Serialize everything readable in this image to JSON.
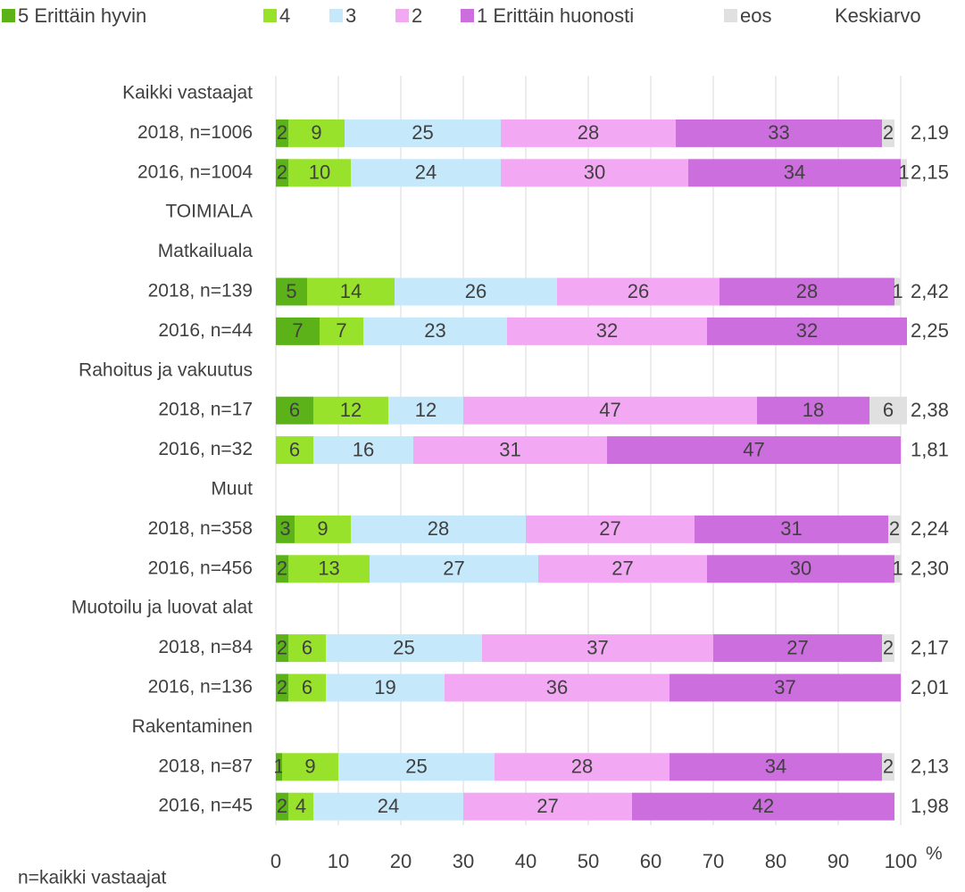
{
  "chart_data": {
    "type": "stacked-bar-horizontal",
    "categories": [
      "Kaikki vastaajat",
      "2018, n=1006",
      "2016, n=1004",
      "TOIMIALA",
      "Matkailuala",
      "2018, n=139",
      "2016, n=44",
      "Rahoitus ja vakuutus",
      "2018, n=17",
      "2016, n=32",
      "Muut",
      "2018, n=358",
      "2016, n=456",
      "Muotoilu ja luovat alat",
      "2018, n=84",
      "2016, n=136",
      "Rakentaminen",
      "2018, n=87",
      "2016, n=45"
    ],
    "series": [
      {
        "name": "5 Erittäin hyvin",
        "color": "#5cb319",
        "values": [
          null,
          2,
          2,
          null,
          null,
          5,
          7,
          null,
          6,
          null,
          null,
          3,
          2,
          null,
          2,
          2,
          null,
          1,
          2
        ]
      },
      {
        "name": "4",
        "color": "#99e22b",
        "values": [
          null,
          9,
          10,
          null,
          null,
          14,
          7,
          null,
          12,
          6,
          null,
          9,
          13,
          null,
          6,
          6,
          null,
          9,
          4
        ]
      },
      {
        "name": "3",
        "color": "#c5e8fa",
        "values": [
          null,
          25,
          24,
          null,
          null,
          26,
          23,
          null,
          12,
          16,
          null,
          28,
          27,
          null,
          25,
          19,
          null,
          25,
          24
        ]
      },
      {
        "name": "2",
        "color": "#f3a8f3",
        "values": [
          null,
          28,
          30,
          null,
          null,
          26,
          32,
          null,
          47,
          31,
          null,
          27,
          27,
          null,
          37,
          36,
          null,
          28,
          27
        ]
      },
      {
        "name": "1 Erittäin huonosti",
        "color": "#cc6ede",
        "values": [
          null,
          33,
          34,
          null,
          null,
          28,
          32,
          null,
          18,
          47,
          null,
          31,
          30,
          null,
          27,
          37,
          null,
          34,
          42
        ]
      },
      {
        "name": "eos",
        "color": "#e0e0e0",
        "values": [
          null,
          2,
          1,
          null,
          null,
          1,
          null,
          null,
          6,
          null,
          null,
          2,
          1,
          null,
          2,
          null,
          null,
          2,
          null
        ]
      }
    ],
    "averages": {
      "name": "Keskiarvo",
      "values": [
        null,
        2.19,
        2.15,
        null,
        null,
        2.42,
        2.25,
        null,
        2.38,
        1.81,
        null,
        2.24,
        2.3,
        null,
        2.17,
        2.01,
        null,
        2.13,
        1.98
      ],
      "value_labels": [
        null,
        "2,19",
        "2,15",
        null,
        null,
        "2,42",
        "2,25",
        null,
        "2,38",
        "1,81",
        null,
        "2,24",
        "2,30",
        null,
        "2,17",
        "2,01",
        null,
        "2,13",
        "1,98"
      ]
    },
    "xlim": [
      0,
      100
    ],
    "xticks": [
      0,
      10,
      20,
      30,
      40,
      50,
      60,
      70,
      80,
      90,
      100
    ],
    "x_unit": "%",
    "note": "n=kaikki vastaajat",
    "grid": true
  }
}
